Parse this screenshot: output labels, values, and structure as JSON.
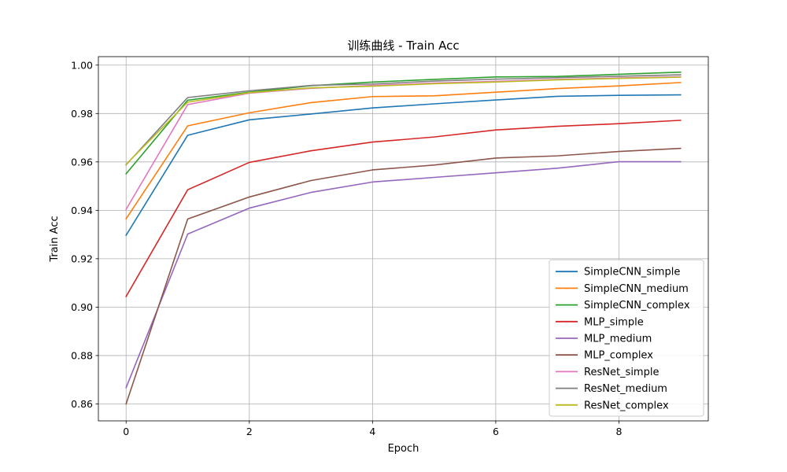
{
  "chart_data": {
    "type": "line",
    "title": "训练曲线 - Train Acc",
    "xlabel": "Epoch",
    "ylabel": "Train Acc",
    "xlim": [
      -0.45,
      9.45
    ],
    "ylim": [
      0.853,
      1.0035
    ],
    "x_ticks": [
      0,
      2,
      4,
      6,
      8
    ],
    "y_ticks": [
      0.86,
      0.88,
      0.9,
      0.92,
      0.94,
      0.96,
      0.98,
      1.0
    ],
    "y_tick_labels": [
      "0.86",
      "0.88",
      "0.90",
      "0.92",
      "0.94",
      "0.96",
      "0.98",
      "1.00"
    ],
    "grid": true,
    "legend_position": "bottom-right",
    "x": [
      0,
      1,
      2,
      3,
      4,
      5,
      6,
      7,
      8,
      9
    ],
    "series": [
      {
        "name": "SimpleCNN_simple",
        "color": "#1f77b4",
        "values": [
          0.9297,
          0.971,
          0.9774,
          0.9798,
          0.9823,
          0.984,
          0.9856,
          0.9871,
          0.9875,
          0.9877
        ]
      },
      {
        "name": "SimpleCNN_medium",
        "color": "#ff7f0e",
        "values": [
          0.9365,
          0.9749,
          0.9803,
          0.9845,
          0.987,
          0.9873,
          0.9888,
          0.9903,
          0.9914,
          0.9928
        ]
      },
      {
        "name": "SimpleCNN_complex",
        "color": "#2ca02c",
        "values": [
          0.9551,
          0.9855,
          0.9888,
          0.9915,
          0.993,
          0.9941,
          0.9951,
          0.9953,
          0.9962,
          0.9971
        ]
      },
      {
        "name": "MLP_simple",
        "color": "#d62728",
        "values": [
          0.9044,
          0.9485,
          0.9598,
          0.9646,
          0.9682,
          0.9703,
          0.9732,
          0.9747,
          0.9758,
          0.9772
        ]
      },
      {
        "name": "MLP_medium",
        "color": "#9467bd",
        "values": [
          0.8667,
          0.9302,
          0.9409,
          0.9474,
          0.9517,
          0.9536,
          0.9555,
          0.9574,
          0.9601,
          0.9601
        ]
      },
      {
        "name": "MLP_complex",
        "color": "#8c564b",
        "values": [
          0.86,
          0.9364,
          0.9455,
          0.9523,
          0.9567,
          0.9587,
          0.9616,
          0.9625,
          0.9643,
          0.9656
        ]
      },
      {
        "name": "ResNet_simple",
        "color": "#e377c2",
        "values": [
          0.9404,
          0.9837,
          0.9884,
          0.9904,
          0.9916,
          0.9926,
          0.9933,
          0.9941,
          0.9947,
          0.9952
        ]
      },
      {
        "name": "ResNet_medium",
        "color": "#7f7f7f",
        "values": [
          0.9588,
          0.9866,
          0.9894,
          0.9916,
          0.9922,
          0.9934,
          0.9942,
          0.9948,
          0.9954,
          0.996
        ]
      },
      {
        "name": "ResNet_complex",
        "color": "#bcbd22",
        "values": [
          0.959,
          0.9847,
          0.9886,
          0.9906,
          0.9913,
          0.9923,
          0.993,
          0.9939,
          0.9945,
          0.995
        ]
      }
    ]
  }
}
